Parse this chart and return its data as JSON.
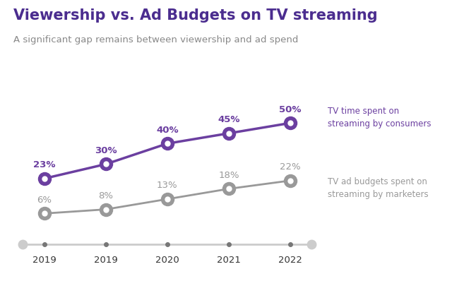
{
  "title": "Viewership vs. Ad Budgets on TV streaming",
  "subtitle": "A significant gap remains between viewership and ad spend",
  "x_labels": [
    "2019",
    "2019",
    "2020",
    "2021",
    "2022"
  ],
  "x_values": [
    0,
    1,
    2,
    3,
    4
  ],
  "consumer_values": [
    23,
    30,
    40,
    45,
    50
  ],
  "marketer_values": [
    6,
    8,
    13,
    18,
    22
  ],
  "consumer_labels": [
    "23%",
    "30%",
    "40%",
    "45%",
    "50%"
  ],
  "marketer_labels": [
    "6%",
    "8%",
    "13%",
    "18%",
    "22%"
  ],
  "consumer_color": "#6B3FA0",
  "marketer_color": "#999999",
  "consumer_legend": "TV time spent on\nstreaming by consumers",
  "marketer_legend": "TV ad budgets spent on\nstreaming by marketers",
  "title_color": "#4B2D8F",
  "subtitle_color": "#888888",
  "bg_color": "#ffffff",
  "timeline_color": "#cccccc",
  "timeline_dot_color": "#777777",
  "label_color_consumer": "#6B3FA0",
  "label_color_marketer": "#999999"
}
